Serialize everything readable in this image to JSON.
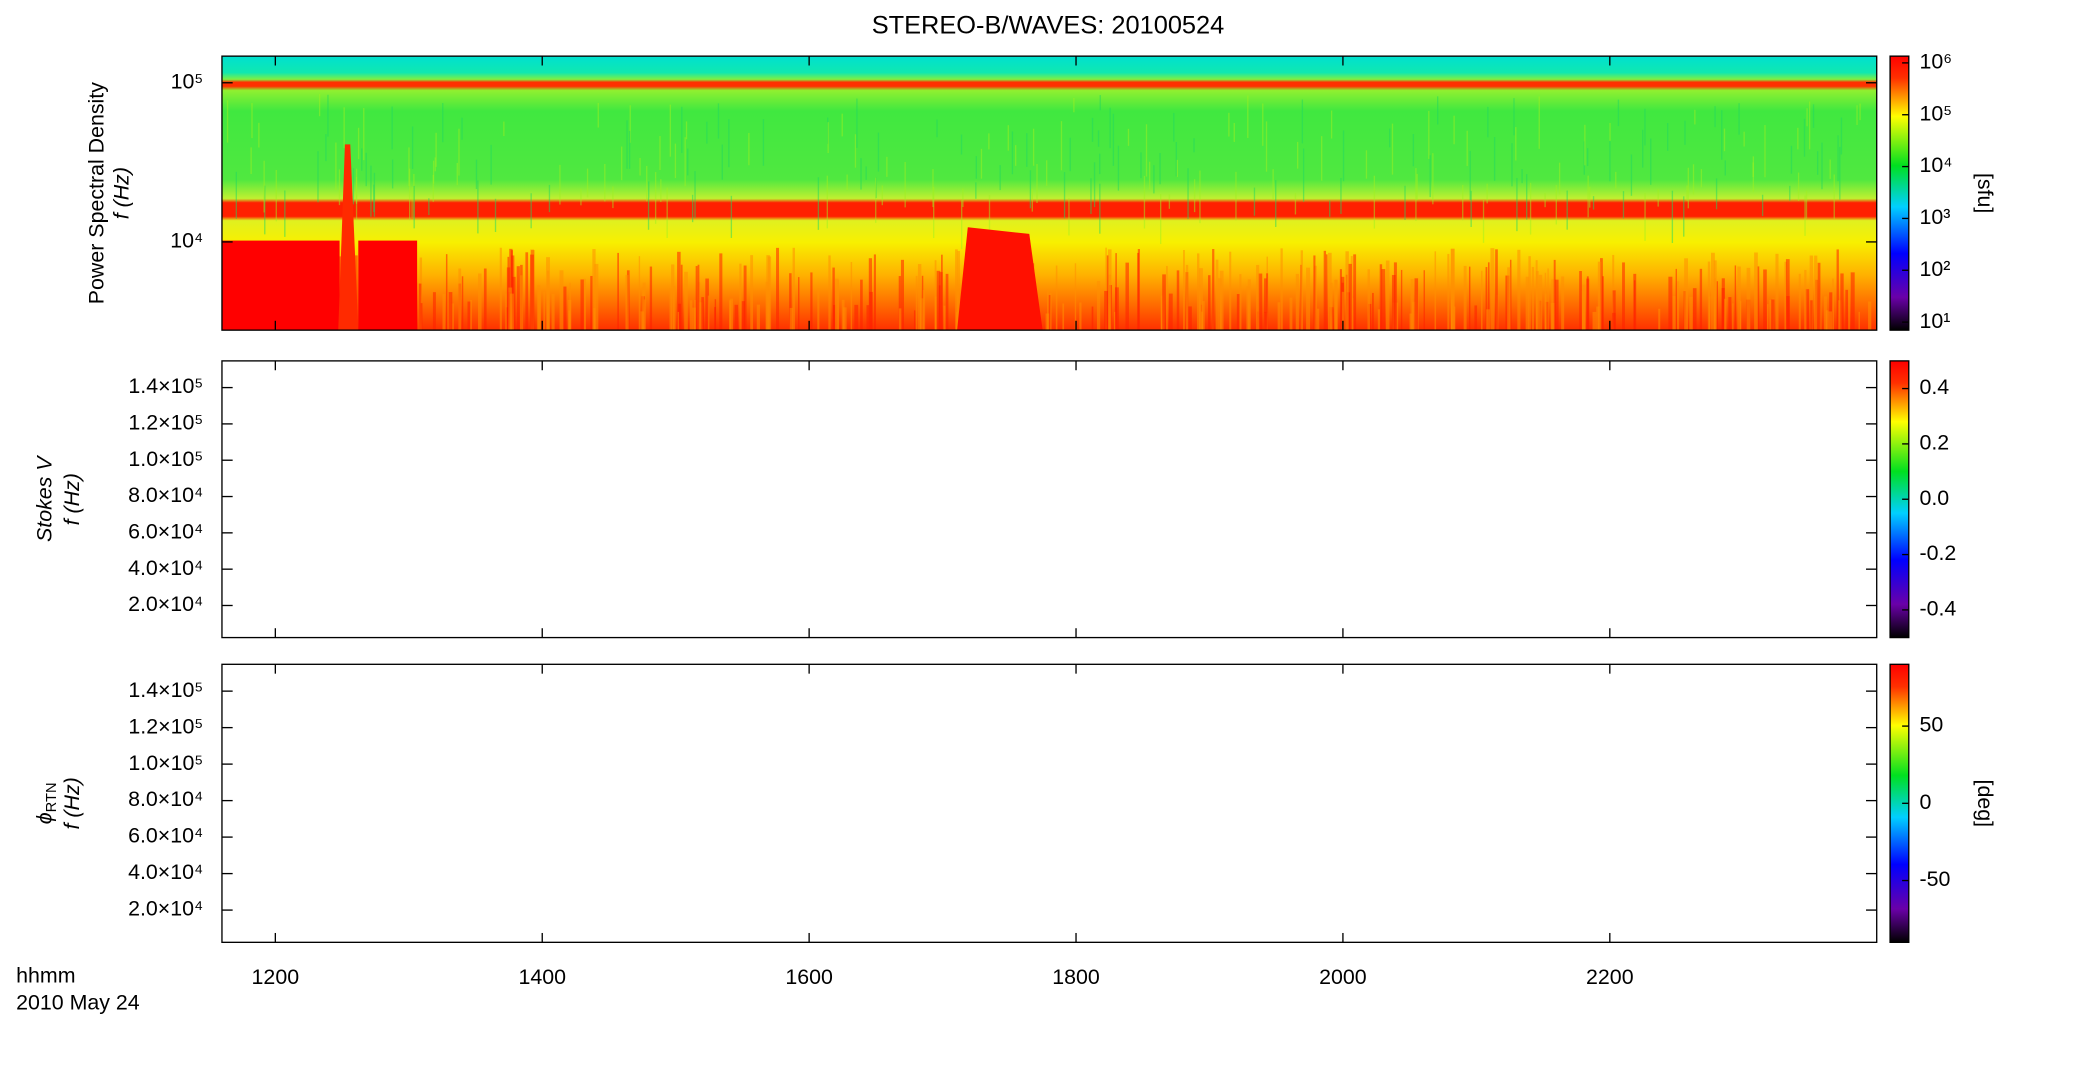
{
  "chart_data": [
    {
      "type": "spectrogram",
      "title": "STEREO-B/WAVES: 20100524",
      "ylabel": "Power Spectral Density",
      "ylabel2": "f (Hz)",
      "ylog": true,
      "ylim": [
        2790,
        147000
      ],
      "yticks": [
        {
          "value": 10000,
          "label": "10⁴"
        },
        {
          "value": 100000,
          "label": "10⁵"
        }
      ],
      "xlim": [
        11.6,
        24
      ],
      "colorbar": {
        "label": "[sfu]",
        "log": true,
        "lim": [
          7,
          1350000
        ],
        "ticks": [
          {
            "value": 10,
            "label": "10¹"
          },
          {
            "value": 100,
            "label": "10²"
          },
          {
            "value": 1000,
            "label": "10³"
          },
          {
            "value": 10000,
            "label": "10⁴"
          },
          {
            "value": 100000,
            "label": "10⁵"
          },
          {
            "value": 1000000,
            "label": "10⁶"
          }
        ]
      }
    },
    {
      "type": "spectrogram",
      "ylabel": "Stokes V",
      "ylabel2": "f (Hz)",
      "ylog": false,
      "ylim": [
        2330,
        154700
      ],
      "yticks": [
        {
          "value": 20000,
          "label": "2.0×10⁴"
        },
        {
          "value": 40000,
          "label": "4.0×10⁴"
        },
        {
          "value": 60000,
          "label": "6.0×10⁴"
        },
        {
          "value": 80000,
          "label": "8.0×10⁴"
        },
        {
          "value": 100000,
          "label": "1.0×10⁵"
        },
        {
          "value": 120000,
          "label": "1.2×10⁵"
        },
        {
          "value": 140000,
          "label": "1.4×10⁵"
        }
      ],
      "xlim": [
        11.6,
        24
      ],
      "colorbar": {
        "log": false,
        "lim": [
          -0.5,
          0.5
        ],
        "ticks": [
          -0.4,
          -0.2,
          {
            "value": 0,
            "label": "0.0"
          },
          0.2,
          0.4
        ]
      }
    },
    {
      "type": "spectrogram",
      "ylabel": "ϕ",
      "ylabel_sub": "RTN",
      "ylabel2": "f (Hz)",
      "ylog": false,
      "ylim": [
        2330,
        154700
      ],
      "yticks": [
        {
          "value": 20000,
          "label": "2.0×10⁴"
        },
        {
          "value": 40000,
          "label": "4.0×10⁴"
        },
        {
          "value": 60000,
          "label": "6.0×10⁴"
        },
        {
          "value": 80000,
          "label": "8.0×10⁴"
        },
        {
          "value": 100000,
          "label": "1.0×10⁵"
        },
        {
          "value": 120000,
          "label": "1.2×10⁵"
        },
        {
          "value": 140000,
          "label": "1.4×10⁵"
        }
      ],
      "xlim": [
        11.6,
        24
      ],
      "xticks": [
        {
          "value": 12,
          "label": "1200"
        },
        {
          "value": 14,
          "label": "1400"
        },
        {
          "value": 16,
          "label": "1600"
        },
        {
          "value": 18,
          "label": "1800"
        },
        {
          "value": 20,
          "label": "2000"
        },
        {
          "value": 22,
          "label": "2200"
        }
      ],
      "xlabel": "hhmm",
      "xlabel2": "2010 May 24",
      "colorbar": {
        "label": "[deg]",
        "log": false,
        "lim": [
          -90,
          90
        ],
        "ticks": [
          -50,
          0,
          50
        ]
      }
    }
  ]
}
